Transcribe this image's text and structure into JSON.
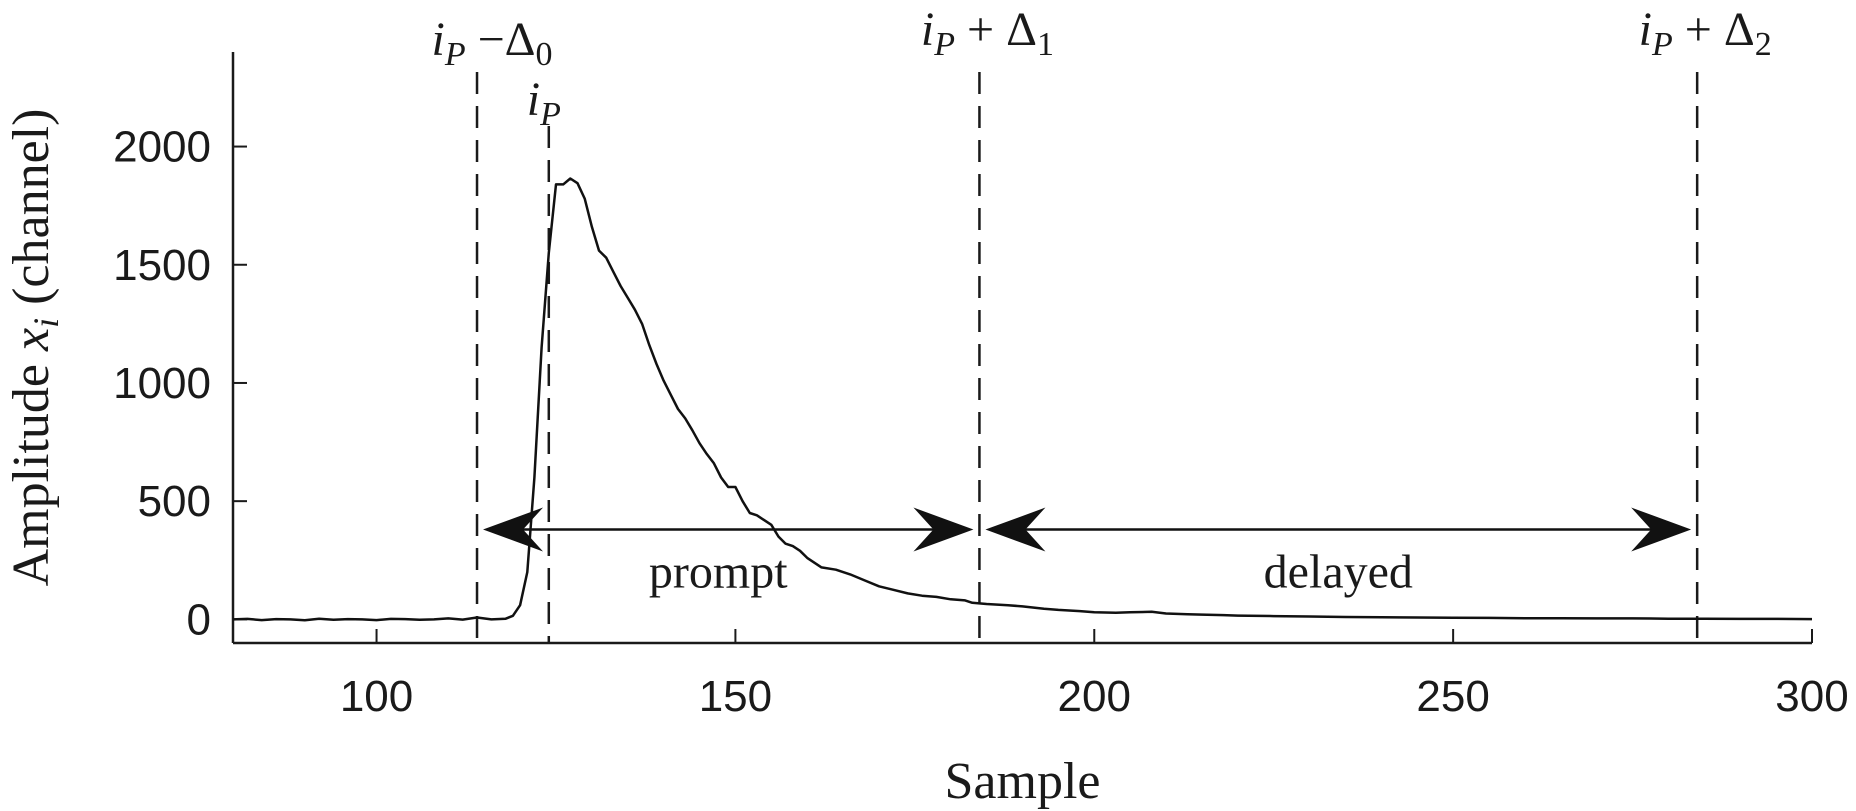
{
  "chart_data": {
    "type": "line",
    "xlabel": "Sample",
    "ylabel_text": "Amplitude",
    "ylabel_var": "x",
    "ylabel_sub": "i",
    "ylabel_unit": "(channel)",
    "xlim": [
      80,
      300
    ],
    "ylim": [
      -100,
      2400
    ],
    "xticks": [
      100,
      150,
      200,
      250,
      300
    ],
    "yticks": [
      0,
      500,
      1000,
      1500,
      2000
    ],
    "grid": false,
    "series": [
      {
        "x": [
          80,
          82,
          84,
          86,
          88,
          90,
          92,
          94,
          96,
          98,
          100,
          102,
          104,
          106,
          108,
          110,
          112,
          114,
          116,
          118,
          119,
          120,
          121,
          122,
          123,
          124,
          125,
          126,
          127,
          128,
          129,
          130,
          131,
          132,
          133,
          134,
          135,
          136,
          137,
          138,
          139,
          140,
          141,
          142,
          143,
          144,
          145,
          146,
          147,
          148,
          149,
          150,
          151,
          152,
          153,
          154,
          155,
          156,
          157,
          158,
          159,
          160,
          162,
          164,
          166,
          168,
          170,
          172,
          174,
          176,
          178,
          180,
          182,
          183,
          185,
          188,
          190,
          193,
          195,
          198,
          200,
          203,
          205,
          208,
          210,
          213,
          215,
          218,
          220,
          225,
          230,
          235,
          240,
          245,
          250,
          255,
          260,
          265,
          270,
          275,
          280,
          285,
          290,
          295,
          300
        ],
        "y": [
          0,
          2,
          -3,
          1,
          0,
          -4,
          3,
          -2,
          1,
          0,
          -3,
          2,
          1,
          -2,
          0,
          4,
          -1,
          8,
          0,
          3,
          15,
          60,
          200,
          600,
          1150,
          1550,
          1840,
          1840,
          1865,
          1845,
          1780,
          1660,
          1560,
          1530,
          1470,
          1410,
          1360,
          1310,
          1250,
          1160,
          1080,
          1010,
          950,
          890,
          850,
          800,
          745,
          700,
          660,
          600,
          560,
          560,
          500,
          450,
          440,
          420,
          400,
          350,
          320,
          310,
          290,
          260,
          220,
          210,
          190,
          165,
          140,
          125,
          110,
          100,
          95,
          85,
          80,
          70,
          65,
          60,
          55,
          45,
          40,
          35,
          30,
          28,
          30,
          32,
          25,
          22,
          20,
          18,
          16,
          14,
          12,
          10,
          9,
          8,
          7,
          6,
          5,
          5,
          4,
          4,
          3,
          3,
          2,
          2,
          1
        ]
      }
    ],
    "markers": [
      {
        "x": 114,
        "label_main": "i",
        "label_sub": "P",
        "label_op": "−Δ",
        "label_idx": "0"
      },
      {
        "x": 124,
        "label_main": "i",
        "label_sub": "P",
        "label_op": "",
        "label_idx": ""
      },
      {
        "x": 184,
        "label_main": "i",
        "label_sub": "P",
        "label_op": "+ Δ",
        "label_idx": "1"
      },
      {
        "x": 284,
        "label_main": "i",
        "label_sub": "P",
        "label_op": "+ Δ",
        "label_idx": "2"
      }
    ],
    "regions": [
      {
        "label": "prompt",
        "x_start": 114,
        "x_end": 184,
        "y": 380
      },
      {
        "label": "delayed",
        "x_start": 184,
        "x_end": 284,
        "y": 380
      }
    ]
  }
}
